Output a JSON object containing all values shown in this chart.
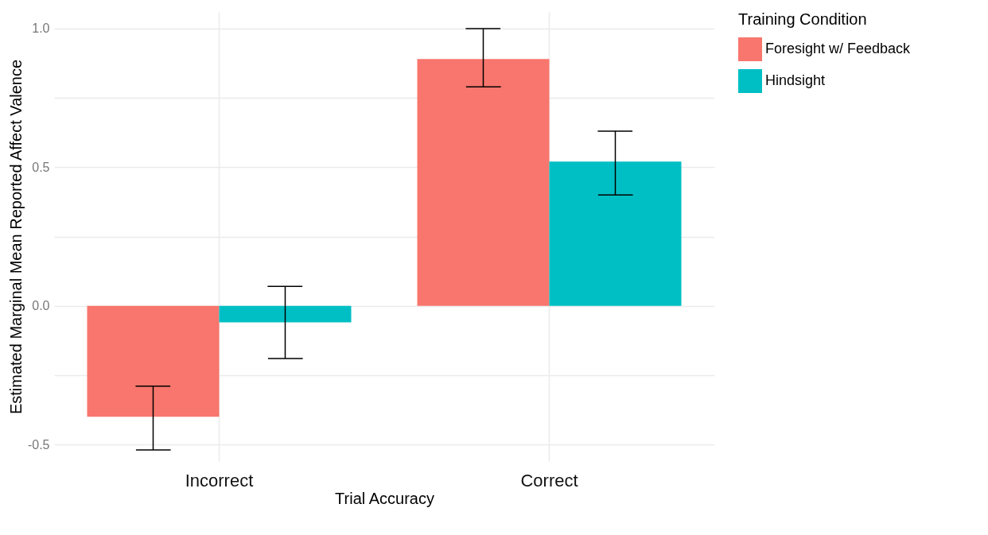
{
  "chart_data": {
    "type": "bar",
    "xlabel": "Trial Accuracy",
    "ylabel": "Estimated Marginal Mean Reported Affect Valence",
    "legend_title": "Training Condition",
    "categories": [
      "Incorrect",
      "Correct"
    ],
    "series": [
      {
        "name": "Foresight w/ Feedback",
        "color": "#f8766d",
        "values": [
          -0.4,
          0.89
        ],
        "errors": [
          [
            -0.52,
            -0.29
          ],
          [
            0.79,
            1.0
          ]
        ]
      },
      {
        "name": "Hindsight",
        "color": "#00bfc4",
        "values": [
          -0.06,
          0.52
        ],
        "errors": [
          [
            -0.19,
            0.07
          ],
          [
            0.4,
            0.63
          ]
        ]
      }
    ],
    "ylim": [
      -0.56,
      1.06
    ],
    "yticks": [
      {
        "value": -0.5,
        "label": "-0.5"
      },
      {
        "value": -0.25,
        "label": null
      },
      {
        "value": 0,
        "label": "0.0"
      },
      {
        "value": 0.25,
        "label": null
      },
      {
        "value": 0.5,
        "label": "0.5"
      },
      {
        "value": 0.75,
        "label": null
      },
      {
        "value": 1,
        "label": "1.0"
      }
    ],
    "grid": true,
    "legend": "right"
  }
}
